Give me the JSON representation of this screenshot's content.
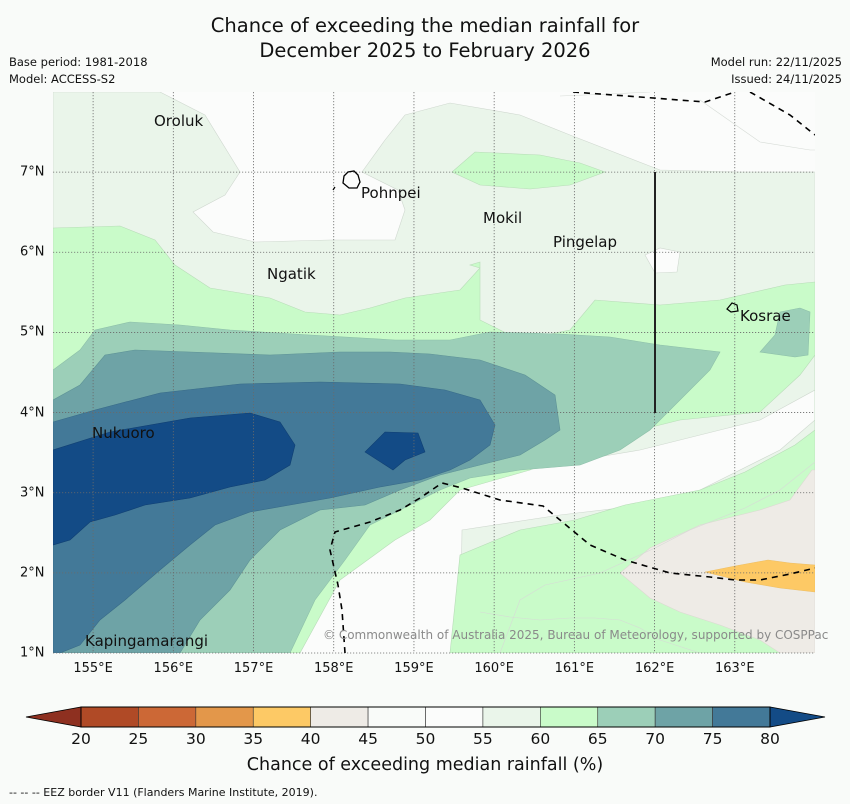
{
  "title": {
    "line1": "Chance of exceeding the median rainfall for",
    "line2": "December 2025 to February 2026"
  },
  "meta_left": {
    "base_period": "Base period: 1981-2018",
    "model": "Model: ACCESS-S2"
  },
  "meta_right": {
    "model_run": "Model run: 22/11/2025",
    "issued": "Issued: 24/11/2025"
  },
  "map": {
    "lon_range": [
      154.5,
      164.0
    ],
    "lat_range": [
      1.0,
      8.0
    ],
    "lat_ticks": [
      "1°N",
      "2°N",
      "3°N",
      "4°N",
      "5°N",
      "6°N",
      "7°N"
    ],
    "lon_ticks": [
      "155°E",
      "156°E",
      "157°E",
      "158°E",
      "159°E",
      "160°E",
      "161°E",
      "162°E",
      "163°E"
    ],
    "places": [
      {
        "name": "Oroluk",
        "lon": 155.5,
        "lat": 7.6
      },
      {
        "name": "Pohnpei",
        "lon": 158.2,
        "lat": 6.9
      },
      {
        "name": "Mokil",
        "lon": 159.8,
        "lat": 6.45
      },
      {
        "name": "Pingelap",
        "lon": 160.7,
        "lat": 6.2
      },
      {
        "name": "Ngatik",
        "lon": 157.1,
        "lat": 5.8
      },
      {
        "name": "Kosrae",
        "lon": 163.0,
        "lat": 5.3
      },
      {
        "name": "Nukuoro",
        "lon": 155.0,
        "lat": 3.85
      },
      {
        "name": "Kapingamarangi",
        "lon": 154.95,
        "lat": 1.25
      }
    ],
    "copyright": "© Commonwealth of Australia 2025, Bureau of Meteorology, supported by COSPPac"
  },
  "colorbar": {
    "label": "Chance of exceeding median rainfall (%)",
    "ticks": [
      "20",
      "25",
      "30",
      "35",
      "40",
      "45",
      "50",
      "55",
      "60",
      "65",
      "70",
      "75",
      "80"
    ],
    "colors": {
      "below20": "#8e3020",
      "20-25": "#b04a26",
      "25-30": "#cc6836",
      "30-35": "#e3974a",
      "35-40": "#fdc965",
      "40-45": "#eeebe6",
      "45-50": "#f9fbf9",
      "50-55": "#fbfcfb",
      "55-60": "#eaf5ea",
      "60-65": "#c9fbc9",
      "65-70": "#9ccfb8",
      "70-75": "#6ea3a6",
      "75-80": "#437998",
      "above80": "#134b86"
    }
  },
  "footnote": "-- -- -- EEZ border V11 (Flanders Marine Institute, 2019)."
}
